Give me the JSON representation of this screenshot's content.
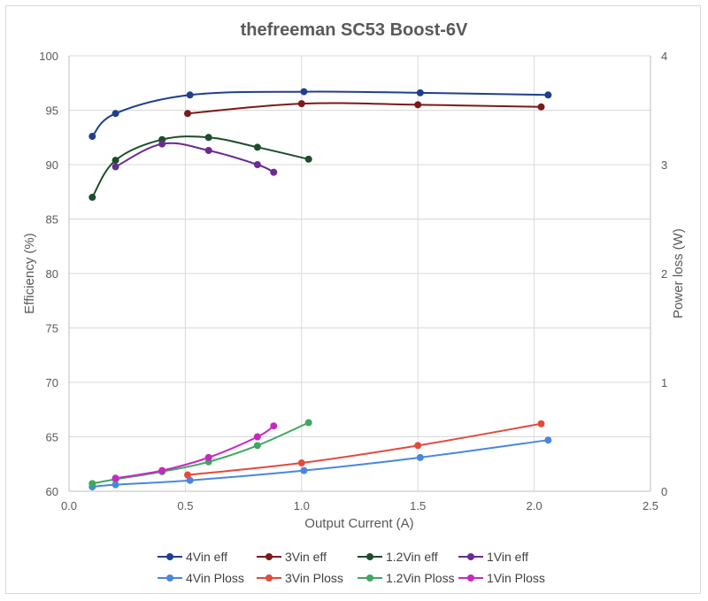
{
  "chart_data": {
    "type": "scatter",
    "title": "thefreeman SC53 Boost-6V",
    "xlabel": "Output Current (A)",
    "ylabel": "Efficiency (%)",
    "y2label": "Power loss (W)",
    "xlim": [
      0,
      2.5
    ],
    "ylim": [
      60,
      100
    ],
    "y2lim": [
      0,
      4
    ],
    "xticks": [
      "0.0",
      "0.5",
      "1.0",
      "1.5",
      "2.0",
      "2.5"
    ],
    "yticks": [
      "60",
      "65",
      "70",
      "75",
      "80",
      "85",
      "90",
      "95",
      "100"
    ],
    "y2ticks": [
      "0",
      "1",
      "2",
      "3",
      "4"
    ],
    "grid": true,
    "legend": "bottom",
    "series": [
      {
        "name": "4Vin eff",
        "axis": "left",
        "color": "#1f3f8f",
        "x": [
          0.1,
          0.2,
          0.52,
          1.01,
          1.51,
          2.06
        ],
        "y": [
          92.6,
          94.7,
          96.4,
          96.7,
          96.6,
          96.4
        ]
      },
      {
        "name": "3Vin eff",
        "axis": "left",
        "color": "#7b1a1a",
        "x": [
          0.51,
          1.0,
          1.5,
          2.03
        ],
        "y": [
          94.7,
          95.6,
          95.5,
          95.3
        ]
      },
      {
        "name": "1.2Vin eff",
        "axis": "left",
        "color": "#1d4d2a",
        "x": [
          0.1,
          0.2,
          0.4,
          0.6,
          0.81,
          1.03
        ],
        "y": [
          87.0,
          90.4,
          92.3,
          92.5,
          91.6,
          90.5
        ]
      },
      {
        "name": "1Vin eff",
        "axis": "left",
        "color": "#6a2c91",
        "x": [
          0.2,
          0.4,
          0.6,
          0.81,
          0.88
        ],
        "y": [
          89.8,
          91.9,
          91.3,
          90.0,
          89.3
        ]
      },
      {
        "name": "4Vin Ploss",
        "axis": "right",
        "color": "#4a86e0",
        "x": [
          0.1,
          0.2,
          0.52,
          1.01,
          1.51,
          2.06
        ],
        "y": [
          0.04,
          0.06,
          0.1,
          0.19,
          0.31,
          0.47
        ]
      },
      {
        "name": "3Vin Ploss",
        "axis": "right",
        "color": "#e24b3c",
        "x": [
          0.51,
          1.0,
          1.5,
          2.03
        ],
        "y": [
          0.15,
          0.26,
          0.42,
          0.62
        ]
      },
      {
        "name": "1.2Vin Ploss",
        "axis": "right",
        "color": "#3fa760",
        "x": [
          0.1,
          0.2,
          0.4,
          0.6,
          0.81,
          1.03
        ],
        "y": [
          0.07,
          0.11,
          0.18,
          0.27,
          0.42,
          0.63
        ]
      },
      {
        "name": "1Vin Ploss",
        "axis": "right",
        "color": "#c729c0",
        "x": [
          0.2,
          0.4,
          0.6,
          0.81,
          0.88
        ],
        "y": [
          0.12,
          0.19,
          0.31,
          0.5,
          0.6
        ]
      }
    ]
  }
}
